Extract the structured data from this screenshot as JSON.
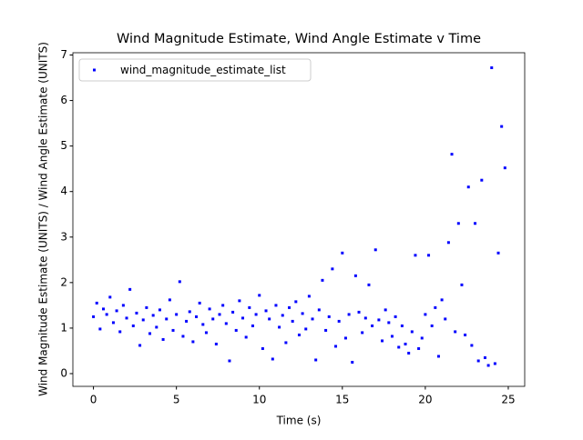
{
  "chart_data": {
    "type": "scatter",
    "title": "Wind Magnitude Estimate, Wind Angle Estimate v Time",
    "x_label": "Time (s)",
    "y_label": "Wind Magnitude Estimate (UNITS) / Wind Angle Estimate (UNITS)",
    "series": [
      {
        "name": "wind_magnitude_estimate_list",
        "color": "#0000ff",
        "x": [
          0,
          0.2,
          0.4,
          0.6,
          0.8,
          1,
          1.2,
          1.4,
          1.6,
          1.8,
          2,
          2.2,
          2.4,
          2.6,
          2.8,
          3,
          3.2,
          3.4,
          3.6,
          3.8,
          4,
          4.2,
          4.4,
          4.6,
          4.8,
          5,
          5.2,
          5.4,
          5.6,
          5.8,
          6,
          6.2,
          6.4,
          6.6,
          6.8,
          7,
          7.2,
          7.4,
          7.6,
          7.8,
          8,
          8.2,
          8.4,
          8.6,
          8.8,
          9,
          9.2,
          9.4,
          9.6,
          9.8,
          10,
          10.2,
          10.4,
          10.6,
          10.8,
          11,
          11.2,
          11.4,
          11.6,
          11.8,
          12,
          12.2,
          12.4,
          12.6,
          12.8,
          13,
          13.2,
          13.4,
          13.6,
          13.8,
          14,
          14.2,
          14.4,
          14.6,
          14.8,
          15,
          15.2,
          15.4,
          15.6,
          15.8,
          16,
          16.2,
          16.4,
          16.6,
          16.8,
          17,
          17.2,
          17.4,
          17.6,
          17.8,
          18,
          18.2,
          18.4,
          18.6,
          18.8,
          19,
          19.2,
          19.4,
          19.6,
          19.8,
          20,
          20.2,
          20.4,
          20.6,
          20.8,
          21,
          21.2,
          21.4,
          21.6,
          21.8,
          22,
          22.2,
          22.4,
          22.6,
          22.8,
          23,
          23.2,
          23.4,
          23.6,
          23.8,
          24,
          24.2,
          24.4,
          24.6,
          24.8
        ],
        "values": [
          1.25,
          1.55,
          0.98,
          1.42,
          1.3,
          1.68,
          1.12,
          1.38,
          0.92,
          1.5,
          1.22,
          1.85,
          1.05,
          1.33,
          0.62,
          1.18,
          1.45,
          0.88,
          1.28,
          1.02,
          1.4,
          0.75,
          1.2,
          1.62,
          0.95,
          1.3,
          2.02,
          0.82,
          1.15,
          1.36,
          0.7,
          1.25,
          1.55,
          1.08,
          0.9,
          1.42,
          1.2,
          0.65,
          1.3,
          1.5,
          1.1,
          0.28,
          1.35,
          0.95,
          1.6,
          1.22,
          0.8,
          1.45,
          1.05,
          1.3,
          1.72,
          0.55,
          1.38,
          1.2,
          0.32,
          1.5,
          1.02,
          1.28,
          0.68,
          1.45,
          1.15,
          1.58,
          0.85,
          1.32,
          0.98,
          1.7,
          1.2,
          0.3,
          1.4,
          2.05,
          0.95,
          1.25,
          2.3,
          0.6,
          1.15,
          2.65,
          0.78,
          1.3,
          0.25,
          2.15,
          1.35,
          0.9,
          1.22,
          1.95,
          1.05,
          2.72,
          1.18,
          0.72,
          1.4,
          1.12,
          0.82,
          1.25,
          0.58,
          1.05,
          0.65,
          0.45,
          0.92,
          2.6,
          0.55,
          0.78,
          1.3,
          2.6,
          1.05,
          1.45,
          0.38,
          1.62,
          1.2,
          2.88,
          4.82,
          0.92,
          3.3,
          1.95,
          0.85,
          4.1,
          0.62,
          3.3,
          0.28,
          4.25,
          0.35,
          0.18,
          6.72,
          0.22,
          2.65,
          5.43,
          4.52
        ]
      }
    ],
    "xlim": [
      -1.24,
      25.99
    ],
    "ylim": [
      -0.28,
      7.05
    ],
    "xticks": [
      0,
      5,
      10,
      15,
      20,
      25
    ],
    "yticks": [
      0,
      1,
      2,
      3,
      4,
      5,
      6,
      7
    ],
    "legend": "upper left"
  }
}
